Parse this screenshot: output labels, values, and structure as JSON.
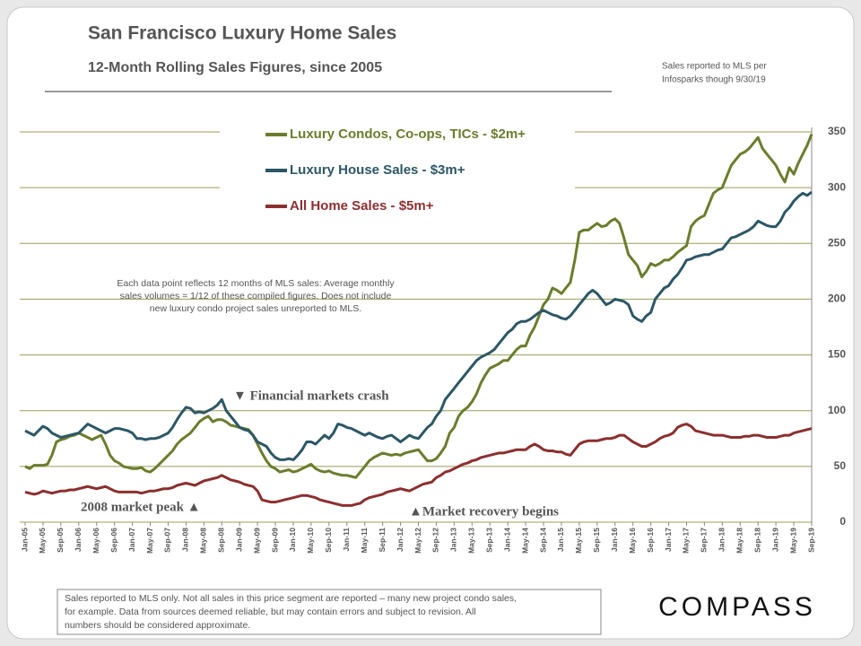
{
  "chart_data": {
    "type": "line",
    "title": "San Francisco Luxury Home Sales",
    "subtitle": "12-Month Rolling Sales Figures, since 2005",
    "source_note": [
      "Sales reported to MLS per",
      "Infosparks though 9/30/19"
    ],
    "note": [
      "Each data point reflects 12 months of MLS sales:  Average monthly",
      "sales volumes = 1/12 of these compiled figures. Does not include",
      "new luxury condo project sales unreported to MLS."
    ],
    "annotations": [
      "▼ Financial markets crash",
      "2008 market peak ▲",
      "▲Market recovery begins"
    ],
    "footer": [
      "Sales reported to MLS only. Not all sales in this price segment are reported – many new project condo sales,",
      "for example. Data from sources deemed reliable, but may contain errors and subject to revision. All",
      "numbers should be considered approximate."
    ],
    "logo": "COMPASS",
    "grid": true,
    "ylim": [
      0,
      350
    ],
    "yticks": [
      0,
      50,
      100,
      150,
      200,
      250,
      300,
      350
    ],
    "categories": [
      "Jan-05",
      null,
      null,
      null,
      "May-05",
      null,
      null,
      null,
      "Sep-05",
      null,
      null,
      null,
      "Jan-06",
      null,
      null,
      null,
      "May-06",
      null,
      null,
      null,
      "Sep-06",
      null,
      null,
      null,
      "Jan-07",
      null,
      null,
      null,
      "May-07",
      null,
      null,
      null,
      "Sep-07",
      null,
      null,
      null,
      "Jan-08",
      null,
      null,
      null,
      "May-08",
      null,
      null,
      null,
      "Sep-08",
      null,
      null,
      null,
      "Jan-09",
      null,
      null,
      null,
      "May-09",
      null,
      null,
      null,
      "Sep-09",
      null,
      null,
      null,
      "Jan-10",
      null,
      null,
      null,
      "May-10",
      null,
      null,
      null,
      "Sep-10",
      null,
      null,
      null,
      "Jan-11",
      null,
      null,
      null,
      "May-11",
      null,
      null,
      null,
      "Sep-11",
      null,
      null,
      null,
      "Jan-12",
      null,
      null,
      null,
      "May-12",
      null,
      null,
      null,
      "Sep-12",
      null,
      null,
      null,
      "Jan-13",
      null,
      null,
      null,
      "May-13",
      null,
      null,
      null,
      "Sep-13",
      null,
      null,
      null,
      "Jan-14",
      null,
      null,
      null,
      "May-14",
      null,
      null,
      null,
      "Sep-14",
      null,
      null,
      null,
      "Jan-15",
      null,
      null,
      null,
      "May-15",
      null,
      null,
      null,
      "Sep-15",
      null,
      null,
      null,
      "Jan-16",
      null,
      null,
      null,
      "May-16",
      null,
      null,
      null,
      "Sep-16",
      null,
      null,
      null,
      "Jan-17",
      null,
      null,
      null,
      "May-17",
      null,
      null,
      null,
      "Sep-17",
      null,
      null,
      null,
      "Jan-18",
      null,
      null,
      null,
      "May-18",
      null,
      null,
      null,
      "Sep-18",
      null,
      null,
      null,
      "Jan-19",
      null,
      null,
      null,
      "May-19",
      null,
      null,
      null,
      "Sep-19"
    ],
    "series": [
      {
        "name": "Luxury Condos, Co-ops, TICs - $2m+",
        "color": "#6a7d2c",
        "values": [
          50,
          48,
          51,
          51,
          51,
          52,
          60,
          72,
          74,
          75,
          77,
          78,
          80,
          78,
          76,
          74,
          76,
          78,
          70,
          60,
          55,
          53,
          50,
          49,
          48,
          48,
          49,
          46,
          45,
          48,
          52,
          56,
          60,
          64,
          70,
          74,
          77,
          80,
          85,
          90,
          93,
          95,
          90,
          92,
          92,
          90,
          87,
          86,
          85,
          84,
          83,
          78,
          70,
          62,
          55,
          50,
          48,
          45,
          46,
          47,
          45,
          46,
          48,
          50,
          52,
          48,
          46,
          45,
          46,
          44,
          43,
          42,
          42,
          41,
          40,
          45,
          50,
          55,
          58,
          60,
          62,
          61,
          60,
          61,
          60,
          62,
          63,
          64,
          65,
          60,
          55,
          55,
          57,
          62,
          68,
          80,
          85,
          95,
          100,
          103,
          108,
          115,
          125,
          132,
          138,
          140,
          142,
          145,
          145,
          150,
          155,
          158,
          158,
          168,
          175,
          185,
          195,
          200,
          210,
          208,
          205,
          210,
          215,
          235,
          260,
          262,
          262,
          265,
          268,
          265,
          266,
          270,
          272,
          268,
          255,
          240,
          235,
          230,
          220,
          225,
          232,
          230,
          232,
          235,
          235,
          238,
          242,
          245,
          248,
          265,
          270,
          273,
          275,
          285,
          295,
          298,
          300,
          310,
          320,
          325,
          330,
          332,
          335,
          340,
          345,
          335,
          330,
          325,
          320,
          312,
          305,
          318,
          312,
          322,
          330,
          338,
          348
        ]
      },
      {
        "name": "Luxury House Sales - $3m+",
        "color": "#2c5766",
        "values": [
          82,
          80,
          78,
          82,
          86,
          84,
          80,
          78,
          76,
          77,
          78,
          79,
          80,
          84,
          88,
          86,
          84,
          82,
          80,
          82,
          84,
          84,
          83,
          82,
          80,
          75,
          75,
          74,
          75,
          75,
          76,
          78,
          80,
          85,
          92,
          98,
          103,
          102,
          98,
          99,
          98,
          100,
          102,
          105,
          110,
          100,
          95,
          90,
          85,
          83,
          82,
          78,
          72,
          70,
          68,
          62,
          58,
          56,
          56,
          57,
          56,
          60,
          65,
          72,
          72,
          70,
          74,
          78,
          75,
          80,
          88,
          87,
          85,
          84,
          82,
          80,
          78,
          80,
          78,
          76,
          75,
          77,
          78,
          75,
          72,
          75,
          78,
          76,
          75,
          80,
          85,
          88,
          95,
          100,
          110,
          115,
          120,
          125,
          130,
          135,
          140,
          145,
          148,
          150,
          152,
          155,
          160,
          165,
          170,
          173,
          178,
          180,
          180,
          182,
          185,
          188,
          190,
          188,
          186,
          185,
          183,
          182,
          185,
          190,
          195,
          200,
          205,
          208,
          205,
          200,
          195,
          197,
          200,
          199,
          198,
          195,
          185,
          182,
          180,
          185,
          188,
          200,
          205,
          210,
          212,
          218,
          222,
          228,
          235,
          236,
          238,
          239,
          240,
          240,
          242,
          244,
          245,
          250,
          255,
          256,
          258,
          260,
          262,
          265,
          270,
          268,
          266,
          265,
          265,
          270,
          278,
          282,
          288,
          292,
          295,
          293,
          296
        ]
      },
      {
        "name": "All Home Sales - $5m+",
        "color": "#8c2f2f",
        "values": [
          27,
          26,
          25,
          26,
          28,
          27,
          26,
          27,
          28,
          28,
          29,
          29,
          30,
          31,
          32,
          31,
          30,
          31,
          32,
          30,
          28,
          27,
          27,
          27,
          27,
          27,
          26,
          27,
          28,
          28,
          29,
          30,
          30,
          31,
          33,
          34,
          35,
          34,
          33,
          35,
          37,
          38,
          39,
          40,
          42,
          40,
          38,
          37,
          36,
          34,
          33,
          32,
          28,
          20,
          19,
          18,
          18,
          19,
          20,
          21,
          22,
          23,
          24,
          24,
          23,
          22,
          20,
          19,
          18,
          17,
          16,
          15,
          15,
          15,
          16,
          17,
          20,
          22,
          23,
          24,
          25,
          27,
          28,
          29,
          30,
          29,
          28,
          30,
          32,
          34,
          35,
          36,
          40,
          42,
          45,
          46,
          48,
          50,
          52,
          53,
          55,
          56,
          58,
          59,
          60,
          61,
          62,
          62,
          63,
          64,
          65,
          65,
          65,
          68,
          70,
          68,
          65,
          64,
          64,
          63,
          63,
          61,
          60,
          65,
          70,
          72,
          73,
          73,
          73,
          74,
          75,
          75,
          76,
          78,
          78,
          75,
          72,
          70,
          68,
          68,
          70,
          72,
          75,
          77,
          78,
          80,
          85,
          87,
          88,
          86,
          82,
          81,
          80,
          79,
          78,
          78,
          78,
          77,
          76,
          76,
          76,
          77,
          77,
          78,
          78,
          77,
          76,
          76,
          76,
          77,
          78,
          78,
          80,
          81,
          82,
          83,
          84
        ]
      }
    ]
  }
}
